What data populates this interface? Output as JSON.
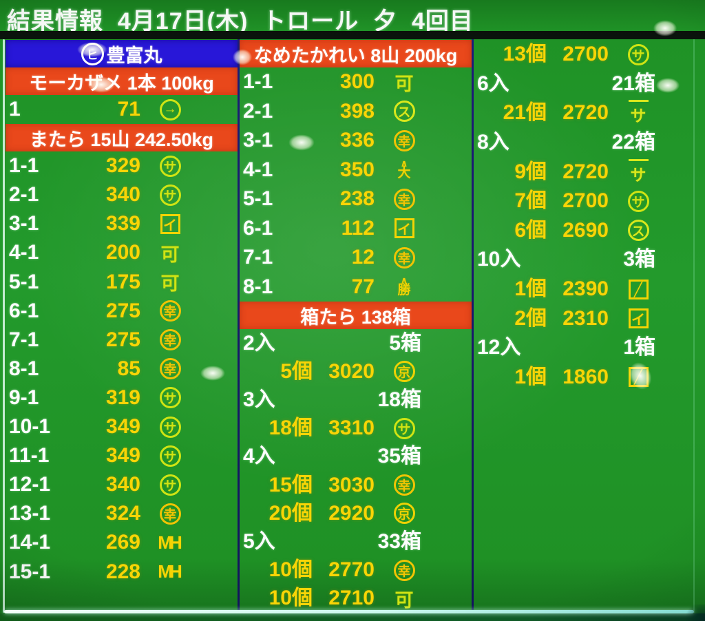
{
  "header": {
    "title": "結果情報  4月17日(木)  トロール  夕  4回目"
  },
  "marks": {
    "circle-sa": {
      "shape": "circle",
      "glyph": "サ",
      "color": "#cfe414"
    },
    "circle-kou": {
      "shape": "circle",
      "glyph": "幸",
      "color": "#f0c404"
    },
    "circle-su": {
      "shape": "circle",
      "glyph": "ス",
      "color": "#d9e81c"
    },
    "circle-kyou": {
      "shape": "circle",
      "glyph": "京",
      "color": "#eed204"
    },
    "circle-arrow": {
      "shape": "circle",
      "glyph": "→",
      "color": "#cfe414"
    },
    "box-i": {
      "shape": "box",
      "glyph": "イ",
      "color": "#f4d404"
    },
    "box-slash": {
      "shape": "box",
      "glyph": "╱",
      "color": "#f4d404"
    },
    "kane-ka": {
      "shape": "plain",
      "glyph": "可",
      "color": "#cfe414"
    },
    "line-sa": {
      "shape": "overline",
      "glyph": "サ",
      "color": "#d9e81c"
    },
    "mh": {
      "shape": "mh",
      "glyph": "MH",
      "color": "#f4d404"
    },
    "yama-dai": {
      "shape": "yama",
      "top": "∧",
      "glyph": "大",
      "color": "#eed204"
    },
    "yama-katsu": {
      "shape": "yama",
      "top": "∧",
      "glyph": "勝",
      "color": "#eed204"
    }
  },
  "columns": [
    {
      "id": "column-1",
      "blocks": [
        {
          "t": "vessel",
          "circle": "ヒ",
          "name": "豊富丸"
        },
        {
          "t": "species",
          "text": "モーカザメ 1本 100kg"
        },
        {
          "t": "lot",
          "no": "1",
          "val": "71",
          "mark": "circle-arrow"
        },
        {
          "t": "species",
          "text": "またら 15山 242.50kg"
        },
        {
          "t": "lot",
          "no": "1-1",
          "val": "329",
          "mark": "circle-sa"
        },
        {
          "t": "lot",
          "no": "2-1",
          "val": "340",
          "mark": "circle-sa"
        },
        {
          "t": "lot",
          "no": "3-1",
          "val": "339",
          "mark": "box-i"
        },
        {
          "t": "lot",
          "no": "4-1",
          "val": "200",
          "mark": "kane-ka"
        },
        {
          "t": "lot",
          "no": "5-1",
          "val": "175",
          "mark": "kane-ka"
        },
        {
          "t": "lot",
          "no": "6-1",
          "val": "275",
          "mark": "circle-kou"
        },
        {
          "t": "lot",
          "no": "7-1",
          "val": "275",
          "mark": "circle-kou"
        },
        {
          "t": "lot",
          "no": "8-1",
          "val": "85",
          "mark": "circle-kou"
        },
        {
          "t": "lot",
          "no": "9-1",
          "val": "319",
          "mark": "circle-sa"
        },
        {
          "t": "lot",
          "no": "10-1",
          "val": "349",
          "mark": "circle-sa"
        },
        {
          "t": "lot",
          "no": "11-1",
          "val": "349",
          "mark": "circle-sa"
        },
        {
          "t": "lot",
          "no": "12-1",
          "val": "340",
          "mark": "circle-sa"
        },
        {
          "t": "lot",
          "no": "13-1",
          "val": "324",
          "mark": "circle-kou"
        },
        {
          "t": "lot",
          "no": "14-1",
          "val": "269",
          "mark": "mh"
        },
        {
          "t": "lot",
          "no": "15-1",
          "val": "228",
          "mark": "mh"
        }
      ]
    },
    {
      "id": "column-2",
      "blocks": [
        {
          "t": "species",
          "text": "なめたかれい 8山 200kg"
        },
        {
          "t": "lot",
          "no": "1-1",
          "val": "300",
          "mark": "kane-ka"
        },
        {
          "t": "lot",
          "no": "2-1",
          "val": "398",
          "mark": "circle-su"
        },
        {
          "t": "lot",
          "no": "3-1",
          "val": "336",
          "mark": "circle-kou"
        },
        {
          "t": "lot",
          "no": "4-1",
          "val": "350",
          "mark": "yama-dai"
        },
        {
          "t": "lot",
          "no": "5-1",
          "val": "238",
          "mark": "circle-kou"
        },
        {
          "t": "lot",
          "no": "6-1",
          "val": "112",
          "mark": "box-i"
        },
        {
          "t": "lot",
          "no": "7-1",
          "val": "12",
          "mark": "circle-kou"
        },
        {
          "t": "lot",
          "no": "8-1",
          "val": "77",
          "mark": "yama-katsu"
        },
        {
          "t": "species",
          "text": "箱たら 138箱"
        },
        {
          "t": "pack",
          "left": "2入",
          "right": "5箱"
        },
        {
          "t": "price",
          "qty": "5個",
          "price": "3020",
          "mark": "circle-kyou"
        },
        {
          "t": "pack",
          "left": "3入",
          "right": "18箱"
        },
        {
          "t": "price",
          "qty": "18個",
          "price": "3310",
          "mark": "circle-sa"
        },
        {
          "t": "pack",
          "left": "4入",
          "right": "35箱"
        },
        {
          "t": "price",
          "qty": "15個",
          "price": "3030",
          "mark": "circle-kou"
        },
        {
          "t": "price",
          "qty": "20個",
          "price": "2920",
          "mark": "circle-kyou"
        },
        {
          "t": "pack",
          "left": "5入",
          "right": "33箱"
        },
        {
          "t": "price",
          "qty": "10個",
          "price": "2770",
          "mark": "circle-kou"
        },
        {
          "t": "price",
          "qty": "10個",
          "price": "2710",
          "mark": "kane-ka"
        }
      ]
    },
    {
      "id": "column-3",
      "blocks": [
        {
          "t": "price",
          "qty": "13個",
          "price": "2700",
          "mark": "circle-sa"
        },
        {
          "t": "pack",
          "left": "6入",
          "right": "21箱"
        },
        {
          "t": "price",
          "qty": "21個",
          "price": "2720",
          "mark": "line-sa"
        },
        {
          "t": "pack",
          "left": "8入",
          "right": "22箱"
        },
        {
          "t": "price",
          "qty": "9個",
          "price": "2720",
          "mark": "line-sa"
        },
        {
          "t": "price",
          "qty": "7個",
          "price": "2700",
          "mark": "circle-sa"
        },
        {
          "t": "price",
          "qty": "6個",
          "price": "2690",
          "mark": "circle-su"
        },
        {
          "t": "pack",
          "left": "10入",
          "right": "3箱"
        },
        {
          "t": "price",
          "qty": "1個",
          "price": "2390",
          "mark": "box-slash"
        },
        {
          "t": "price",
          "qty": "2個",
          "price": "2310",
          "mark": "box-i"
        },
        {
          "t": "pack",
          "left": "12入",
          "right": "1箱"
        },
        {
          "t": "price",
          "qty": "1個",
          "price": "1860",
          "mark": "box-slash"
        }
      ]
    }
  ]
}
